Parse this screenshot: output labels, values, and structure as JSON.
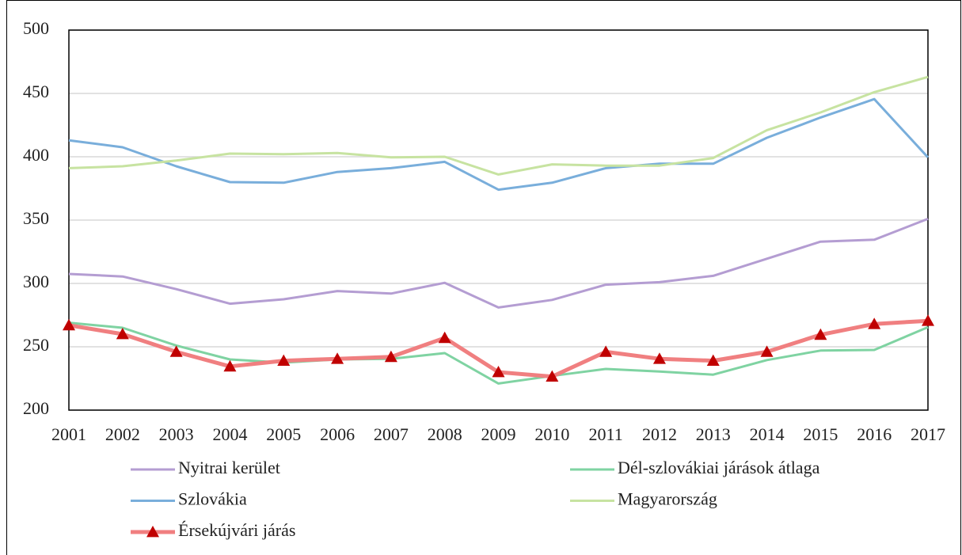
{
  "chart_data": {
    "type": "line",
    "categories": [
      "2001",
      "2002",
      "2003",
      "2004",
      "2005",
      "2006",
      "2007",
      "2008",
      "2009",
      "2010",
      "2011",
      "2012",
      "2013",
      "2014",
      "2015",
      "2016",
      "2017"
    ],
    "ylim": [
      200,
      500
    ],
    "yticks": [
      200,
      250,
      300,
      350,
      400,
      450,
      500
    ],
    "grid": true,
    "series": [
      {
        "name": "Nyitrai kerület",
        "color": "#b49dd2",
        "values": [
          307.5,
          305.5,
          295.5,
          284,
          287.5,
          294,
          292,
          300.5,
          281,
          287,
          299,
          301,
          306,
          319.5,
          333,
          334.5,
          351
        ]
      },
      {
        "name": "Dél-szlovákiai járások átlaga",
        "color": "#7fd3a2",
        "values": [
          269,
          265,
          251,
          240,
          237.5,
          240,
          240.5,
          245,
          221,
          227,
          232.5,
          230.5,
          228,
          239.5,
          247,
          247.5,
          265.5
        ]
      },
      {
        "name": "Szlovákia",
        "color": "#79aedb",
        "values": [
          413,
          407.5,
          392.5,
          380,
          379.5,
          388,
          391,
          396,
          374,
          379.5,
          391,
          394.5,
          394.5,
          415,
          431,
          445.5,
          399.5
        ]
      },
      {
        "name": "Magyarország",
        "color": "#c7e3a1",
        "values": [
          391,
          392.5,
          397,
          402.5,
          402,
          403,
          399.5,
          400,
          386,
          394,
          393,
          393,
          399,
          421,
          435,
          451,
          463
        ]
      },
      {
        "name": "Érsekújvári járás",
        "color": "#f07f80",
        "marker_color": "#c00000",
        "marker": "triangle",
        "values": [
          267,
          260,
          246,
          234.5,
          239,
          240.5,
          242,
          257,
          230,
          226.5,
          246,
          240.5,
          239,
          246,
          259.5,
          268,
          270.5
        ]
      }
    ]
  }
}
